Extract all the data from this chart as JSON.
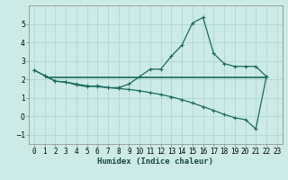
{
  "xlabel": "Humidex (Indice chaleur)",
  "ylabel": "",
  "background_color": "#cceae6",
  "grid_color": "#aad4cf",
  "line_color": "#1a6b5e",
  "xlim": [
    -0.5,
    23.5
  ],
  "ylim": [
    -1.5,
    6.0
  ],
  "yticks": [
    -1,
    0,
    1,
    2,
    3,
    4,
    5
  ],
  "xticks": [
    0,
    1,
    2,
    3,
    4,
    5,
    6,
    7,
    8,
    9,
    10,
    11,
    12,
    13,
    14,
    15,
    16,
    17,
    18,
    19,
    20,
    21,
    22,
    23
  ],
  "curve1_x": [
    0,
    1,
    2,
    3,
    4,
    5,
    6,
    7,
    8,
    9,
    10,
    11,
    12,
    13,
    14,
    15,
    16,
    17,
    18,
    19,
    20,
    21,
    22
  ],
  "curve1_y": [
    2.5,
    2.2,
    1.9,
    1.85,
    1.7,
    1.6,
    1.65,
    1.55,
    1.55,
    1.75,
    2.15,
    2.55,
    2.55,
    3.25,
    3.85,
    5.05,
    5.35,
    3.4,
    2.85,
    2.7,
    2.7,
    2.7,
    2.15
  ],
  "curve2_x": [
    0,
    1,
    2,
    3,
    4,
    5,
    6,
    7,
    8,
    9,
    10,
    11,
    12,
    13,
    14,
    15,
    16,
    17,
    18,
    19,
    20,
    21,
    22
  ],
  "curve2_y": [
    2.5,
    2.2,
    1.9,
    1.85,
    1.75,
    1.65,
    1.6,
    1.55,
    1.5,
    1.45,
    1.38,
    1.28,
    1.18,
    1.05,
    0.9,
    0.72,
    0.52,
    0.32,
    0.1,
    -0.08,
    -0.18,
    -0.68,
    2.15
  ],
  "hline_y": 2.08,
  "hline_x_start": 1.0,
  "hline_x_end": 22.0,
  "tick_fontsize": 5.5,
  "xlabel_fontsize": 6.5
}
